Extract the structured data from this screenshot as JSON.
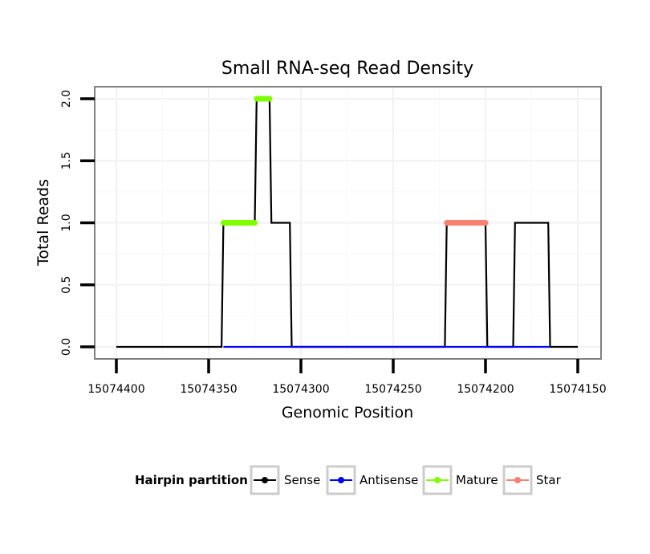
{
  "chart_data": {
    "type": "line",
    "title": "Small RNA-seq Read Density",
    "xlabel": "Genomic Position",
    "ylabel": "Total Reads",
    "xlim": [
      15074400,
      15074150
    ],
    "ylim": [
      0,
      2
    ],
    "x_ticks": [
      15074400,
      15074350,
      15074300,
      15074250,
      15074200,
      15074150
    ],
    "x_tick_labels": [
      "15074400",
      "15074350",
      "15074300",
      "15074250",
      "15074200",
      "15074150"
    ],
    "y_ticks": [
      0,
      0.5,
      1,
      1.5,
      2
    ],
    "y_tick_labels": [
      "0.0",
      "0.5",
      "1.0",
      "1.5",
      "2.0"
    ],
    "grid": true,
    "series": [
      {
        "name": "Sense",
        "color": "#000000",
        "points": [
          [
            15074400,
            0
          ],
          [
            15074343,
            0
          ],
          [
            15074342,
            1
          ],
          [
            15074325,
            1
          ],
          [
            15074324,
            2
          ],
          [
            15074317,
            2
          ],
          [
            15074316,
            1
          ],
          [
            15074306,
            1
          ],
          [
            15074305,
            0
          ],
          [
            15074222,
            0
          ],
          [
            15074221,
            1
          ],
          [
            15074200,
            1
          ],
          [
            15074199,
            0
          ],
          [
            15074185,
            0
          ],
          [
            15074184,
            1
          ],
          [
            15074166,
            1
          ],
          [
            15074165,
            0
          ],
          [
            15074150,
            0
          ]
        ]
      },
      {
        "name": "Antisense",
        "color": "#0000ff",
        "points": [
          [
            15074342,
            0
          ],
          [
            15074305,
            0
          ],
          [
            15074221,
            0
          ],
          [
            15074199,
            0
          ],
          [
            15074184,
            0
          ],
          [
            15074165,
            0
          ]
        ]
      },
      {
        "name": "Mature",
        "color": "#7fff00",
        "segments": [
          {
            "x": [
              15074342,
              15074325
            ],
            "y": 1
          },
          {
            "x": [
              15074324,
              15074317
            ],
            "y": 2
          }
        ]
      },
      {
        "name": "Star",
        "color": "#fa8072",
        "segments": [
          {
            "x": [
              15074221,
              15074200
            ],
            "y": 1
          }
        ]
      }
    ],
    "legend": {
      "title": "Hairpin partition",
      "position": "bottom",
      "entries": [
        {
          "label": "Sense",
          "color": "#000000"
        },
        {
          "label": "Antisense",
          "color": "#0000ff"
        },
        {
          "label": "Mature",
          "color": "#7fff00"
        },
        {
          "label": "Star",
          "color": "#fa8072"
        }
      ]
    }
  }
}
